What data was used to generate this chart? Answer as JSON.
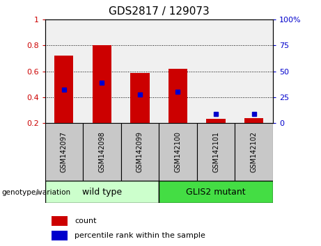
{
  "title": "GDS2817 / 129073",
  "categories": [
    "GSM142097",
    "GSM142098",
    "GSM142099",
    "GSM142100",
    "GSM142101",
    "GSM142102"
  ],
  "bar_values": [
    0.72,
    0.8,
    0.59,
    0.62,
    0.23,
    0.24
  ],
  "percentile_values": [
    0.46,
    0.51,
    0.42,
    0.44,
    0.27,
    0.27
  ],
  "bar_color": "#cc0000",
  "percentile_color": "#0000cc",
  "baseline": 0.2,
  "ylim_left": [
    0.2,
    1.0
  ],
  "ylim_right": [
    0,
    100
  ],
  "yticks_left": [
    0.2,
    0.4,
    0.6,
    0.8,
    1.0
  ],
  "yticks_right": [
    0,
    25,
    50,
    75,
    100
  ],
  "ytick_labels_left": [
    "0.2",
    "0.4",
    "0.6",
    "0.8",
    "1"
  ],
  "ytick_labels_right": [
    "0",
    "25",
    "50",
    "75",
    "100%"
  ],
  "group_labels": [
    "wild type",
    "GLIS2 mutant"
  ],
  "group_colors_fill": [
    "#ccffcc",
    "#44dd44"
  ],
  "genotype_label": "genotype/variation",
  "legend_count": "count",
  "legend_percentile": "percentile rank within the sample",
  "bar_width": 0.5,
  "plot_bg_color": "#f0f0f0",
  "title_fontsize": 11,
  "tick_bg_color": "#c8c8c8",
  "axis_color_left": "#cc0000",
  "axis_color_right": "#0000cc"
}
